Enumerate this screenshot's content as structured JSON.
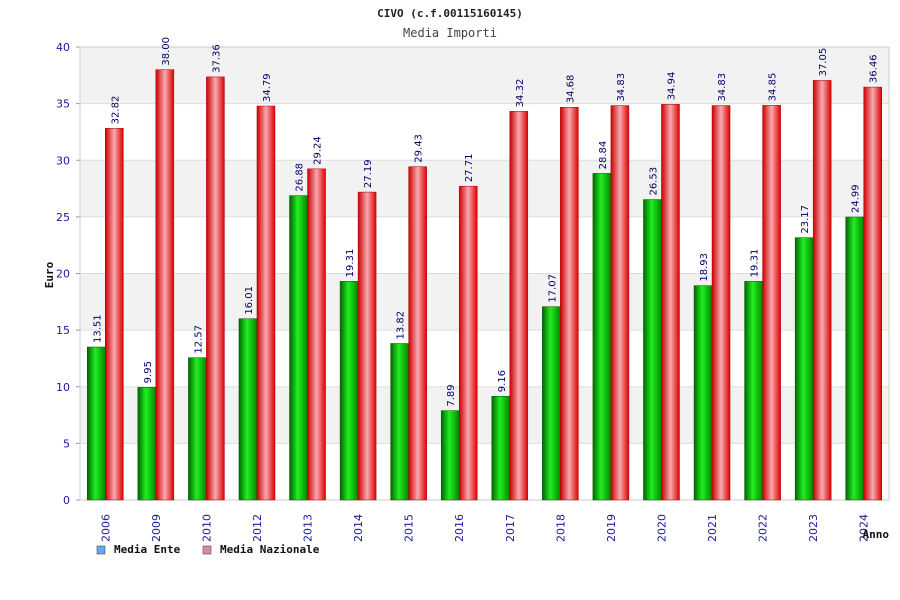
{
  "chart_data": {
    "type": "bar",
    "title": "CIVO (c.f.00115160145)",
    "subtitle": "Media Importi",
    "xlabel": "Anno",
    "ylabel": "Euro",
    "ylim": [
      0,
      40
    ],
    "yticks": [
      0,
      5,
      10,
      15,
      20,
      25,
      30,
      35,
      40
    ],
    "grid": "horizontal",
    "legend_position": "bottom-left",
    "categories": [
      "2006",
      "2009",
      "2010",
      "2012",
      "2013",
      "2014",
      "2015",
      "2016",
      "2017",
      "2018",
      "2019",
      "2020",
      "2021",
      "2022",
      "2023",
      "2024"
    ],
    "series": [
      {
        "name": "Media Ente",
        "color": "#00cc00",
        "legend_color": "#66aaee",
        "values": [
          13.51,
          9.95,
          12.57,
          16.01,
          26.88,
          19.31,
          13.82,
          7.89,
          9.16,
          17.07,
          28.84,
          26.53,
          18.93,
          19.31,
          23.17,
          24.99
        ],
        "labels": [
          "13.51",
          "9.95",
          "12.57",
          "16.01",
          "26.88",
          "19.31",
          "13.82",
          "7.89",
          "9.16",
          "17.07",
          "28.84",
          "26.53",
          "18.93",
          "19.31",
          "23.17",
          "24.99"
        ]
      },
      {
        "name": "Media Nazionale",
        "color": "#ee1111",
        "legend_color": "#dd88aa",
        "values": [
          32.82,
          38.0,
          37.36,
          34.79,
          29.24,
          27.19,
          29.43,
          27.71,
          34.32,
          34.68,
          34.83,
          34.94,
          34.83,
          34.85,
          37.05,
          36.46
        ],
        "labels": [
          "32.82",
          "38.00",
          "37.36",
          "34.79",
          "29.24",
          "27.19",
          "29.43",
          "27.71",
          "34.32",
          "34.68",
          "34.83",
          "34.94",
          "34.83",
          "34.85",
          "37.05",
          "36.46"
        ]
      }
    ]
  }
}
